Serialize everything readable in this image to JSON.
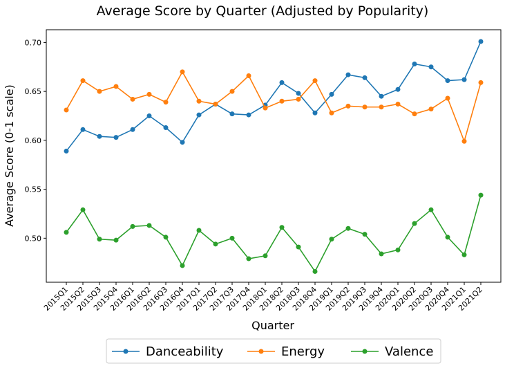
{
  "chart_data": {
    "type": "line",
    "title": "Average Score by Quarter (Adjusted by Popularity)",
    "xlabel": "Quarter",
    "ylabel": "Average Score (0-1 scale)",
    "ylim": [
      0.455,
      0.713
    ],
    "yticks": [
      "0.50",
      "0.55",
      "0.60",
      "0.65",
      "0.70"
    ],
    "grid": false,
    "legend_position": "bottom-center",
    "categories": [
      "2015Q1",
      "2015Q2",
      "2015Q3",
      "2015Q4",
      "2016Q1",
      "2016Q2",
      "2016Q3",
      "2016Q4",
      "2017Q1",
      "2017Q2",
      "2017Q3",
      "2017Q4",
      "2018Q1",
      "2018Q2",
      "2018Q3",
      "2018Q4",
      "2019Q1",
      "2019Q2",
      "2019Q3",
      "2019Q4",
      "2020Q1",
      "2020Q2",
      "2020Q3",
      "2020Q4",
      "2021Q1",
      "2021Q2"
    ],
    "series": [
      {
        "name": "Danceability",
        "color": "#1f77b4",
        "values": [
          0.589,
          0.611,
          0.604,
          0.603,
          0.611,
          0.625,
          0.613,
          0.598,
          0.626,
          0.637,
          0.627,
          0.626,
          0.636,
          0.659,
          0.648,
          0.628,
          0.647,
          0.667,
          0.664,
          0.645,
          0.652,
          0.678,
          0.675,
          0.661,
          0.662,
          0.701
        ]
      },
      {
        "name": "Energy",
        "color": "#ff7f0e",
        "values": [
          0.631,
          0.661,
          0.65,
          0.655,
          0.642,
          0.647,
          0.639,
          0.67,
          0.64,
          0.637,
          0.65,
          0.666,
          0.633,
          0.64,
          0.642,
          0.661,
          0.628,
          0.635,
          0.634,
          0.634,
          0.637,
          0.627,
          0.632,
          0.643,
          0.599,
          0.659
        ]
      },
      {
        "name": "Valence",
        "color": "#2ca02c",
        "values": [
          0.506,
          0.529,
          0.499,
          0.498,
          0.512,
          0.513,
          0.501,
          0.472,
          0.508,
          0.494,
          0.5,
          0.479,
          0.482,
          0.511,
          0.491,
          0.466,
          0.499,
          0.51,
          0.504,
          0.484,
          0.488,
          0.515,
          0.529,
          0.501,
          0.483,
          0.544
        ]
      }
    ]
  }
}
